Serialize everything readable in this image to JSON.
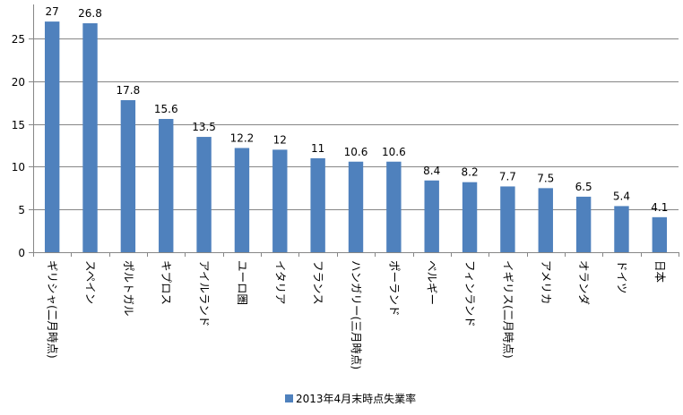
{
  "chart_data": {
    "type": "bar",
    "categories": [
      "ギリシャ(二月時点)",
      "スペイン",
      "ポルトガル",
      "キプロス",
      "アイルランド",
      "ユーロ圏",
      "イタリア",
      "フランス",
      "ハンガリー(三月時点)",
      "ポーランド",
      "ベルギー",
      "フィンランド",
      "イギリス(二月時点)",
      "アメリカ",
      "オランダ",
      "ドイツ",
      "日本"
    ],
    "series": [
      {
        "name": "2013年4月末時点失業率",
        "values": [
          27,
          26.8,
          17.8,
          15.6,
          13.5,
          12.2,
          12,
          11,
          10.6,
          10.6,
          8.4,
          8.2,
          7.7,
          7.5,
          6.5,
          5.4,
          4.1
        ],
        "labels": [
          "27",
          "26.8",
          "17.8",
          "15.6",
          "13.5",
          "12.2",
          "12",
          "11",
          "10.6",
          "10.6",
          "8.4",
          "8.2",
          "7.7",
          "7.5",
          "6.5",
          "5.4",
          "4.1"
        ],
        "color": "#4F81BD"
      }
    ],
    "yticks": [
      0,
      5,
      10,
      15,
      20,
      25
    ],
    "ylim": [
      0,
      29
    ],
    "grid": true,
    "legend": "bottom",
    "title": "",
    "xlabel": "",
    "ylabel": ""
  }
}
